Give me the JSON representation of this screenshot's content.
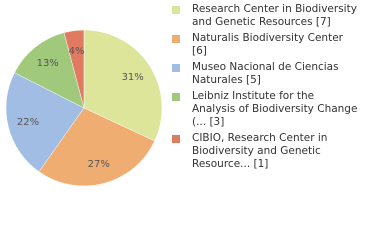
{
  "chart_data": {
    "type": "pie",
    "categories": [
      "Research Center in Biodiversity and Genetic Resources [7]",
      "Naturalis Biodiversity Center [6]",
      "Museo Nacional de Ciencias Naturales [5]",
      "Leibniz Institute for the Analysis of Biodiversity Change (... [3]",
      "CIBIO, Research Center in Biodiversity and Genetic Resource... [1]"
    ],
    "values": [
      31,
      27,
      22,
      13,
      4
    ],
    "value_labels": [
      "31%",
      "27%",
      "22%",
      "13%",
      "4%"
    ],
    "colors": [
      "#dde59b",
      "#f0ad72",
      "#a2bde3",
      "#a1c97c",
      "#e07b62"
    ],
    "legend": "right"
  }
}
